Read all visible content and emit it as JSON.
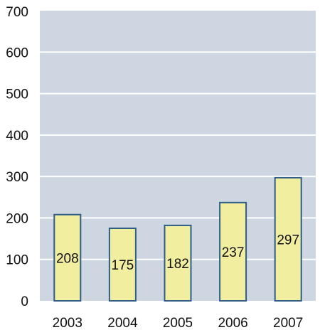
{
  "chart_data": {
    "type": "bar",
    "categories": [
      "2003",
      "2004",
      "2005",
      "2006",
      "2007"
    ],
    "values": [
      208,
      175,
      182,
      237,
      297
    ],
    "data_labels": [
      "208",
      "175",
      "182",
      "237",
      "297"
    ],
    "title": "",
    "xlabel": "",
    "ylabel": "",
    "ylim": [
      0,
      700
    ],
    "yticks": [
      "0",
      "100",
      "200",
      "300",
      "400",
      "500",
      "600",
      "700"
    ],
    "grid": true,
    "legend": "none",
    "colors": {
      "plot_background": "#cdd6e1",
      "gridline": "#ffffff",
      "bar_fill": "#f1ee9f",
      "bar_stroke": "#2e5d86"
    }
  }
}
